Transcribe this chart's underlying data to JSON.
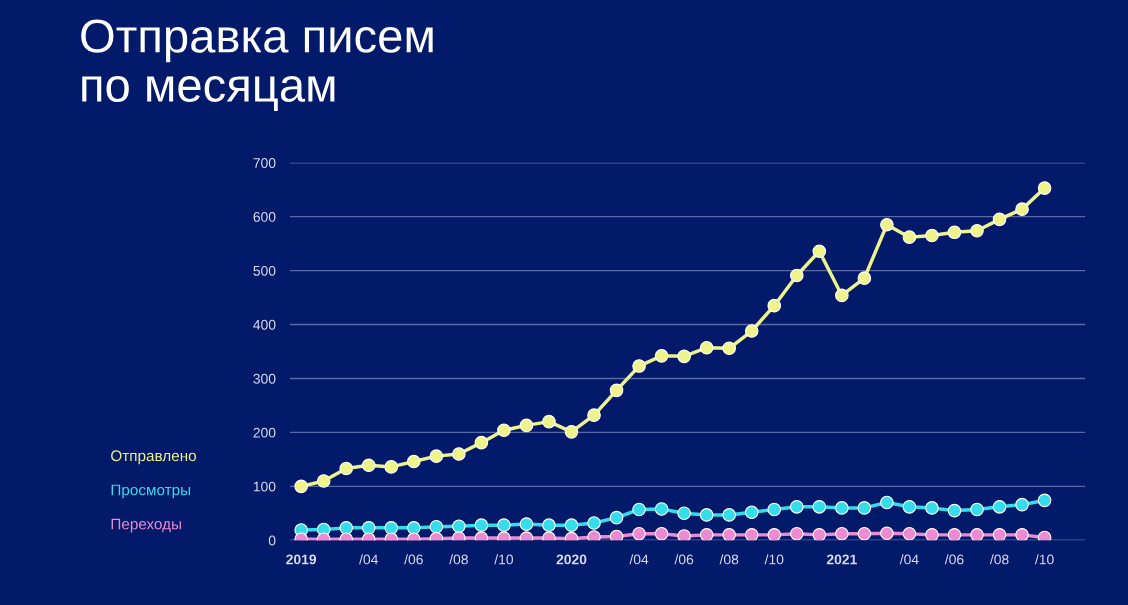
{
  "chart_data": {
    "type": "line",
    "title": "Отправка писем\nпо месяцам",
    "categories": [
      "2019",
      null,
      null,
      "/04",
      null,
      "/06",
      null,
      "/08",
      null,
      "/10",
      null,
      null,
      "2020",
      null,
      null,
      "/04",
      null,
      "/06",
      null,
      "/08",
      null,
      "/10",
      null,
      null,
      "2021",
      null,
      null,
      "/04",
      null,
      "/06",
      null,
      "/08",
      null,
      "/10"
    ],
    "series": [
      {
        "name": "Отправлено",
        "color": "#eef38a",
        "values": [
          100,
          110,
          133,
          139,
          136,
          146,
          156,
          160,
          181,
          204,
          213,
          220,
          201,
          232,
          278,
          323,
          342,
          341,
          357,
          356,
          388,
          435,
          491,
          536,
          454,
          486,
          585,
          562,
          565,
          571,
          574,
          595,
          614,
          653
        ]
      },
      {
        "name": "Просмотры",
        "color": "#35dcec",
        "values": [
          19,
          20,
          23,
          23,
          23,
          23,
          25,
          26,
          28,
          28,
          30,
          28,
          28,
          32,
          42,
          57,
          58,
          50,
          47,
          47,
          52,
          57,
          62,
          62,
          60,
          60,
          70,
          62,
          60,
          55,
          57,
          62,
          66,
          74
        ]
      },
      {
        "name": "Переходы",
        "color": "#ee8ad2",
        "values": [
          2,
          2,
          2,
          2,
          2,
          2,
          3,
          4,
          4,
          4,
          4,
          4,
          3,
          6,
          7,
          12,
          12,
          8,
          10,
          10,
          10,
          10,
          12,
          10,
          12,
          12,
          13,
          12,
          10,
          10,
          10,
          10,
          10,
          5
        ]
      }
    ],
    "ylim": [
      0,
      700
    ],
    "yticks": [
      0,
      100,
      200,
      300,
      400,
      500,
      600,
      700
    ],
    "grid": "y",
    "legend": "left",
    "marker": "circle",
    "line_style": "solid"
  }
}
